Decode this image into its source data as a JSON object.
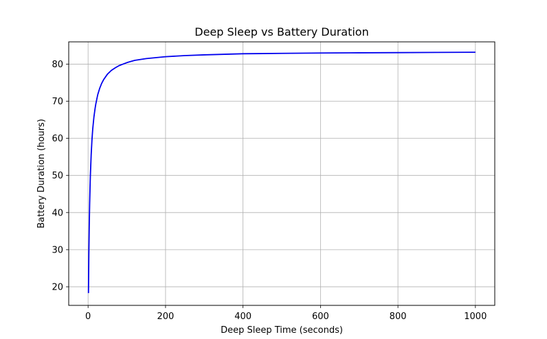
{
  "chart_data": {
    "type": "line",
    "title": "Deep Sleep vs Battery Duration",
    "xlabel": "Deep Sleep Time (seconds)",
    "ylabel": "Battery Duration (hours)",
    "xlim": [
      -50,
      1050
    ],
    "ylim": [
      15,
      86
    ],
    "xticks": [
      0,
      200,
      400,
      600,
      800,
      1000
    ],
    "yticks": [
      20,
      30,
      40,
      50,
      60,
      70,
      80
    ],
    "grid": true,
    "legend": "none",
    "series": [
      {
        "color": "#0000ee",
        "x": [
          1,
          2,
          3,
          4,
          5,
          6,
          8,
          10,
          12,
          15,
          18,
          20,
          25,
          30,
          35,
          40,
          50,
          60,
          70,
          80,
          100,
          120,
          150,
          200,
          250,
          300,
          400,
          500,
          600,
          700,
          800,
          900,
          1000
        ],
        "y": [
          18.3,
          28.9,
          36.4,
          42.2,
          46.6,
          50.2,
          55.6,
          59.6,
          62.5,
          65.7,
          68.0,
          69.3,
          71.8,
          73.5,
          74.8,
          75.8,
          77.3,
          78.3,
          79.0,
          79.6,
          80.4,
          81.0,
          81.5,
          82.0,
          82.3,
          82.5,
          82.8,
          82.9,
          83.0,
          83.05,
          83.1,
          83.15,
          83.2
        ]
      }
    ]
  }
}
